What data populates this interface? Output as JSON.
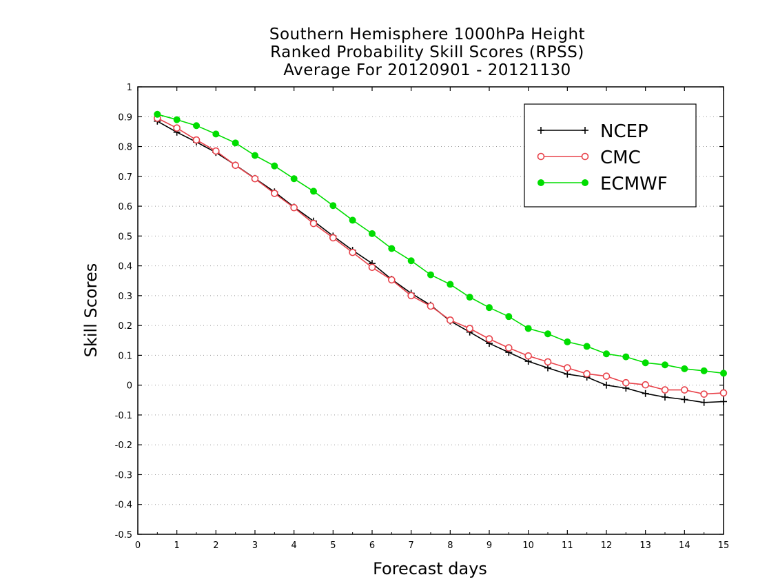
{
  "chart_data": {
    "type": "line",
    "title_lines": [
      "Southern Hemisphere 1000hPa Height",
      "Ranked Probability Skill Scores (RPSS)",
      "Average For 20120901 - 20121130"
    ],
    "xlabel": "Forecast days",
    "ylabel": "Skill Scores",
    "xlim": [
      0,
      15
    ],
    "ylim": [
      -0.5,
      1
    ],
    "xticks": [
      "0",
      "1",
      "2",
      "3",
      "4",
      "5",
      "6",
      "7",
      "8",
      "9",
      "10",
      "11",
      "12",
      "13",
      "14",
      "15"
    ],
    "yticks": [
      "-0.5",
      "-0.4",
      "-0.3",
      "-0.2",
      "-0.1",
      "0",
      "0.1",
      "0.2",
      "0.3",
      "0.4",
      "0.5",
      "0.6",
      "0.7",
      "0.8",
      "0.9",
      "1"
    ],
    "grid": "horizontal dotted",
    "legend_position": "top-right",
    "x": [
      0.5,
      1,
      1.5,
      2,
      2.5,
      3,
      3.5,
      4,
      4.5,
      5,
      5.5,
      6,
      6.5,
      7,
      7.5,
      8,
      8.5,
      9,
      9.5,
      10,
      10.5,
      11,
      11.5,
      12,
      12.5,
      13,
      13.5,
      14,
      14.5,
      15
    ],
    "series": [
      {
        "name": "NCEP",
        "color": "#000000",
        "marker": "plus",
        "values": [
          0.885,
          0.848,
          0.815,
          0.78,
          0.738,
          0.693,
          0.648,
          0.597,
          0.55,
          0.5,
          0.452,
          0.408,
          0.355,
          0.308,
          0.268,
          0.215,
          0.178,
          0.14,
          0.11,
          0.08,
          0.058,
          0.037,
          0.027,
          0.0,
          -0.01,
          -0.028,
          -0.04,
          -0.048,
          -0.058,
          -0.055
        ]
      },
      {
        "name": "CMC",
        "color": "#e8424a",
        "marker": "open-circle",
        "values": [
          0.895,
          0.862,
          0.822,
          0.785,
          0.737,
          0.692,
          0.643,
          0.595,
          0.542,
          0.494,
          0.445,
          0.395,
          0.353,
          0.3,
          0.265,
          0.218,
          0.19,
          0.155,
          0.125,
          0.098,
          0.078,
          0.058,
          0.038,
          0.03,
          0.008,
          0.001,
          -0.016,
          -0.016,
          -0.03,
          -0.026
        ]
      },
      {
        "name": "ECMWF",
        "color": "#00dd00",
        "marker": "filled-circle",
        "values": [
          0.908,
          0.89,
          0.87,
          0.842,
          0.812,
          0.77,
          0.735,
          0.692,
          0.65,
          0.602,
          0.553,
          0.508,
          0.458,
          0.417,
          0.37,
          0.338,
          0.295,
          0.26,
          0.23,
          0.19,
          0.172,
          0.145,
          0.13,
          0.105,
          0.095,
          0.075,
          0.068,
          0.055,
          0.048,
          0.04
        ]
      }
    ]
  }
}
